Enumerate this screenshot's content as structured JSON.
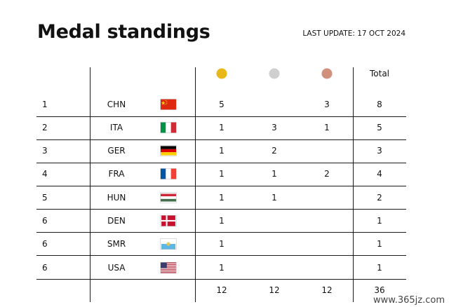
{
  "header": {
    "title": "Medal standings",
    "last_update": "LAST UPDATE: 17 OCT 2024"
  },
  "columns": {
    "gold_icon": "gold-medal-icon",
    "silver_icon": "silver-medal-icon",
    "bronze_icon": "bronze-medal-icon",
    "total_label": "Total"
  },
  "colors": {
    "gold": "#e8b819",
    "silver": "#cfcfcf",
    "bronze": "#cf917b",
    "rule": "#1a1a1a"
  },
  "rows": [
    {
      "rank": "1",
      "code": "CHN",
      "flag": "china-flag-icon",
      "gold": "5",
      "silver": "",
      "bronze": "3",
      "total": "8"
    },
    {
      "rank": "2",
      "code": "ITA",
      "flag": "italy-flag-icon",
      "gold": "1",
      "silver": "3",
      "bronze": "1",
      "total": "5"
    },
    {
      "rank": "3",
      "code": "GER",
      "flag": "germany-flag-icon",
      "gold": "1",
      "silver": "2",
      "bronze": "",
      "total": "3"
    },
    {
      "rank": "4",
      "code": "FRA",
      "flag": "france-flag-icon",
      "gold": "1",
      "silver": "1",
      "bronze": "2",
      "total": "4"
    },
    {
      "rank": "5",
      "code": "HUN",
      "flag": "hungary-flag-icon",
      "gold": "1",
      "silver": "1",
      "bronze": "",
      "total": "2"
    },
    {
      "rank": "6",
      "code": "DEN",
      "flag": "denmark-flag-icon",
      "gold": "1",
      "silver": "",
      "bronze": "",
      "total": "1"
    },
    {
      "rank": "6",
      "code": "SMR",
      "flag": "san-marino-flag-icon",
      "gold": "1",
      "silver": "",
      "bronze": "",
      "total": "1"
    },
    {
      "rank": "6",
      "code": "USA",
      "flag": "usa-flag-icon",
      "gold": "1",
      "silver": "",
      "bronze": "",
      "total": "1"
    }
  ],
  "totals": {
    "gold": "12",
    "silver": "12",
    "bronze": "12",
    "total": "36"
  },
  "watermark": "www.365jz.com"
}
